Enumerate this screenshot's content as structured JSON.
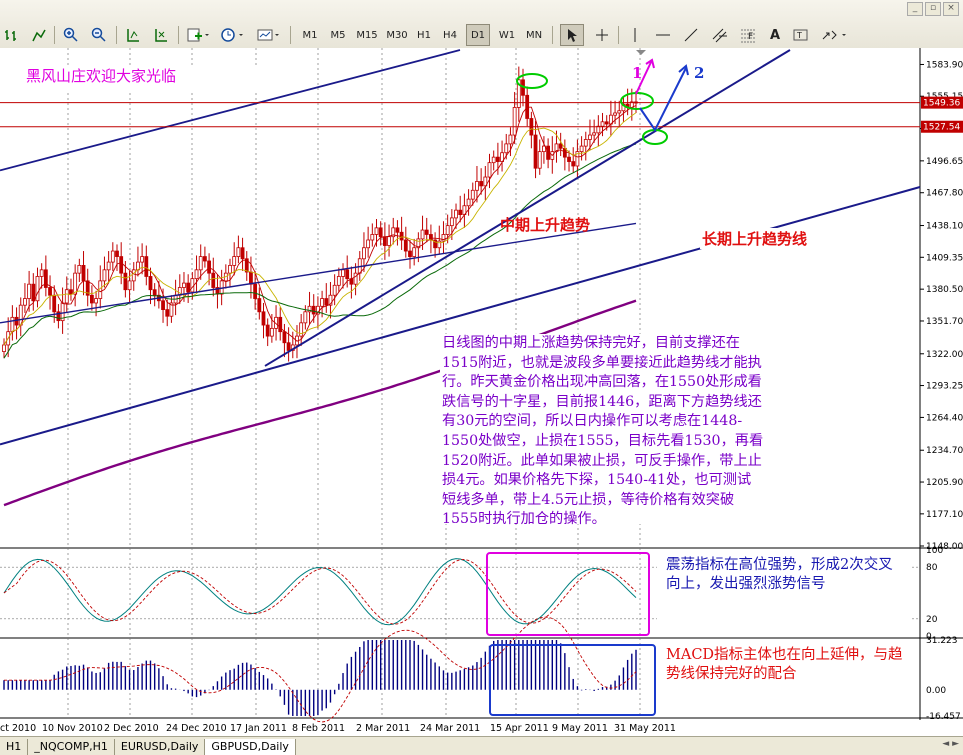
{
  "toolbar": {
    "timeframes": [
      "M1",
      "M5",
      "M15",
      "M30",
      "H1",
      "H4",
      "D1",
      "W1",
      "MN"
    ],
    "active_timeframe": "D1",
    "drawing_tools": [
      "cursor",
      "crosshair",
      "vertical-line",
      "horizontal-line",
      "trendline",
      "fibonacci",
      "channel",
      "text",
      "arrows"
    ],
    "text_tool_label": "A"
  },
  "tabs": [
    "H1",
    "_NQCOMP,H1",
    "EURUSD,Daily",
    "GBPUSD,Daily"
  ],
  "active_tab": "GBPUSD,Daily",
  "annotations": {
    "title": "黑风山庄欢迎大家光临",
    "mid_trend": "中期上升趋势",
    "long_trend": "长期上升趋势线",
    "main_text": "日线图的中期上涨趋势保持完好，目前支撑还在\n1515附近，也就是波段多单要接近此趋势线才能执\n行。昨天黄金价格出现冲高回落，在1550处形成看\n跌信号的十字星，目前报1446，距离下方趋势线还\n有30元的空间，所以日内操作可以考虑在1448-\n1550处做空，止损在1555，目标先看1530，再看\n1520附近。此单如果被止损，可反手操作，带上止\n损4元。如果价格先下探，1540-41处，也可测试\n短线多单，带上4.5元止损，等待价格有效突破\n1555时执行加仓的操作。",
    "oscillator": "震荡指标在高位强势，形成2次交叉向上，发出强烈涨势信号",
    "macd": "MACD指标主体也在向上延伸，与趋势线保持完好的配合",
    "arrow1": "1",
    "arrow2": "2"
  },
  "colors": {
    "candle_up": "#c00000",
    "candle_down": "#c00000",
    "trendline": "#1a1a8a",
    "ma_long": "#800080",
    "price_line": "#c00000",
    "osc_main": "#008080",
    "osc_signal": "#c00000",
    "macd_hist": "#000080",
    "macd_signal": "#c00000",
    "magenta": "#e000e0",
    "green_circle": "#00cc00",
    "blue_arrow": "#1a3acc"
  },
  "chart_data": [
    {
      "type": "candlestick",
      "title": "",
      "ylim": [
        1148.0,
        1597.0
      ],
      "y_ticks": [
        "1583.90",
        "1555.15",
        "1525.90",
        "1496.65",
        "1467.80",
        "1438.10",
        "1409.35",
        "1380.50",
        "1351.70",
        "1322.00",
        "1293.25",
        "1264.40",
        "1234.70",
        "1205.90",
        "1177.10",
        "1148.00"
      ],
      "price_labels": {
        "current": "1549.36",
        "level": "1527.54"
      },
      "x_labels": [
        "ct 2010",
        "10 Nov 2010",
        "2 Dec 2010",
        "24 Dec 2010",
        "17 Jan 2011",
        "8 Feb 2011",
        "2 Mar 2011",
        "24 Mar 2011",
        "15 Apr 2011",
        "9 May 2011",
        "31 May 2011"
      ],
      "close": [
        1330,
        1342,
        1355,
        1348,
        1366,
        1372,
        1385,
        1370,
        1392,
        1398,
        1382,
        1375,
        1360,
        1352,
        1368,
        1380,
        1376,
        1395,
        1402,
        1388,
        1375,
        1368,
        1372,
        1388,
        1398,
        1405,
        1415,
        1410,
        1395,
        1380,
        1388,
        1398,
        1405,
        1410,
        1392,
        1380,
        1375,
        1370,
        1362,
        1356,
        1368,
        1375,
        1382,
        1386,
        1378,
        1390,
        1398,
        1410,
        1406,
        1395,
        1382,
        1376,
        1388,
        1395,
        1402,
        1410,
        1418,
        1408,
        1396,
        1385,
        1372,
        1360,
        1348,
        1338,
        1345,
        1355,
        1342,
        1332,
        1325,
        1330,
        1338,
        1350,
        1360,
        1365,
        1358,
        1365,
        1372,
        1366,
        1375,
        1384,
        1392,
        1398,
        1390,
        1385,
        1395,
        1408,
        1418,
        1425,
        1430,
        1436,
        1428,
        1420,
        1428,
        1436,
        1432,
        1425,
        1415,
        1410,
        1418,
        1426,
        1434,
        1430,
        1425,
        1418,
        1424,
        1430,
        1438,
        1445,
        1452,
        1448,
        1456,
        1462,
        1470,
        1478,
        1474,
        1482,
        1495,
        1500,
        1496,
        1504,
        1512,
        1520,
        1545,
        1570,
        1556,
        1535,
        1520,
        1490,
        1505,
        1510,
        1498,
        1505,
        1512,
        1508,
        1500,
        1496,
        1492,
        1505,
        1510,
        1516,
        1520,
        1522,
        1528,
        1532,
        1530,
        1538,
        1540,
        1542,
        1548,
        1545,
        1550,
        1549
      ],
      "sma_long": "rising",
      "description_levels": [
        1515,
        1550,
        1555,
        1530,
        1520,
        1540,
        1541
      ]
    },
    {
      "type": "line",
      "title": "",
      "name": "oscillator",
      "ylim": [
        0,
        100
      ],
      "y_ticks": [
        "100",
        "80",
        "20",
        "0"
      ],
      "levels": [
        80,
        20
      ]
    },
    {
      "type": "bar",
      "title": "",
      "name": "MACD",
      "ylim": [
        -16.457,
        31.223
      ],
      "y_ticks": [
        "31.223",
        "0.00",
        "-16.457"
      ]
    }
  ]
}
